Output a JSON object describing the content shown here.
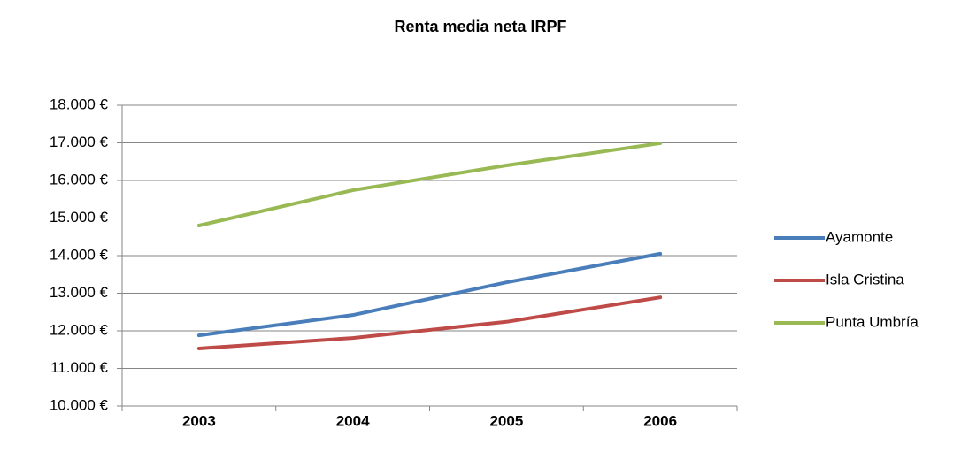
{
  "chart_data": {
    "type": "line",
    "title": "Renta media neta IRPF",
    "categories": [
      "2003",
      "2004",
      "2005",
      "2006"
    ],
    "series": [
      {
        "name": "Ayamonte",
        "color": "#4a7ebb",
        "values": [
          11880,
          12420,
          13290,
          14050
        ]
      },
      {
        "name": "Isla Cristina",
        "color": "#be4b48",
        "values": [
          11530,
          11810,
          12240,
          12890
        ]
      },
      {
        "name": "Punta Umbría",
        "color": "#98b954",
        "values": [
          14800,
          15740,
          16400,
          16990
        ]
      }
    ],
    "ylim": [
      10000,
      18000
    ],
    "yticks": [
      {
        "value": 10000,
        "label": "10.000 €"
      },
      {
        "value": 11000,
        "label": "11.000 €"
      },
      {
        "value": 12000,
        "label": "12.000 €"
      },
      {
        "value": 13000,
        "label": "13.000 €"
      },
      {
        "value": 14000,
        "label": "14.000 €"
      },
      {
        "value": 15000,
        "label": "15.000 €"
      },
      {
        "value": 16000,
        "label": "16.000 €"
      },
      {
        "value": 17000,
        "label": "17.000 €"
      },
      {
        "value": 18000,
        "label": "18.000 €"
      }
    ],
    "grid": true,
    "legend": "right"
  }
}
